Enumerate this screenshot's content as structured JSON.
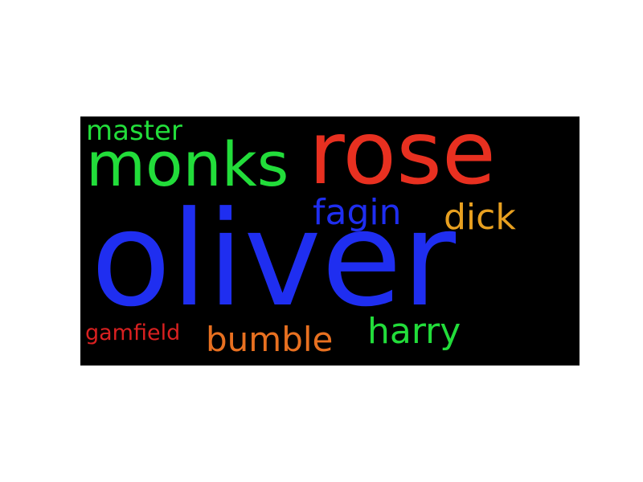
{
  "word_cloud": {
    "background_color": "#000000",
    "words": [
      {
        "id": "oliver",
        "text": "oliver",
        "color": "#1f2ef0"
      },
      {
        "id": "rose",
        "text": "rose",
        "color": "#e83020"
      },
      {
        "id": "monks",
        "text": "monks",
        "color": "#22dd3a"
      },
      {
        "id": "fagin",
        "text": "fagin",
        "color": "#1f2ef0"
      },
      {
        "id": "dick",
        "text": "dick",
        "color": "#e8a020"
      },
      {
        "id": "harry",
        "text": "harry",
        "color": "#22dd3a"
      },
      {
        "id": "bumble",
        "text": "bumble",
        "color": "#e87020"
      },
      {
        "id": "master",
        "text": "master",
        "color": "#22dd3a"
      },
      {
        "id": "gamfield",
        "text": "gamfield",
        "color": "#d92020"
      }
    ]
  }
}
